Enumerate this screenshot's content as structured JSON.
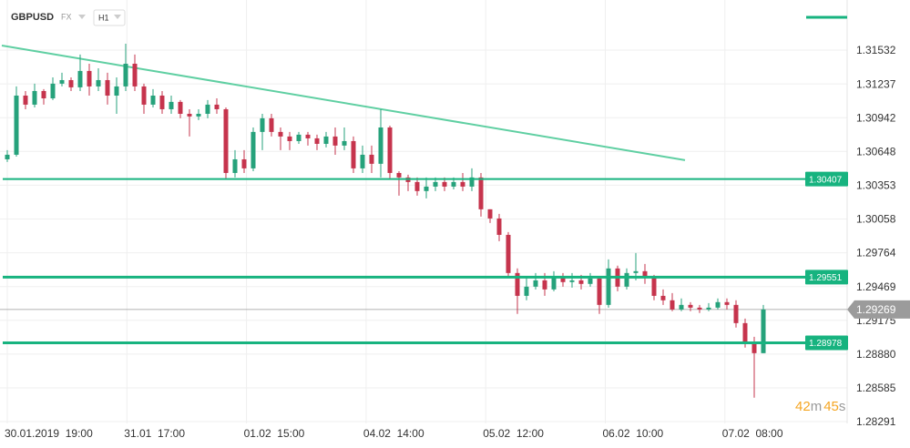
{
  "header": {
    "symbol": "GBPUSD",
    "market": "FX",
    "interval": "H1"
  },
  "timer": {
    "minutes": "42",
    "minutes_unit": "m",
    "seconds": "45",
    "seconds_unit": "s"
  },
  "chart_data": {
    "type": "candlestick",
    "up_color": "#26a27b",
    "down_color": "#c6344d",
    "ylim": [
      1.28275,
      1.31969
    ],
    "yticks": [
      1.31532,
      1.31237,
      1.30942,
      1.30648,
      1.30353,
      1.30058,
      1.29764,
      1.29469,
      1.29175,
      {
        "value": 1.2888,
        "label": "1.28880"
      },
      1.28585,
      1.28291
    ],
    "grid": true,
    "x_labels": [
      "30.01.2019  19:00",
      "31.01  17:00",
      "01.02  15:00",
      "04.02  14:00",
      "05.02  12:00",
      "06.02  10:00",
      "07.02  08:00"
    ],
    "ohlc": [
      [
        1.30579,
        1.30659,
        1.30556,
        1.30619
      ],
      [
        1.30619,
        1.31215,
        1.30603,
        1.31135
      ],
      [
        1.31135,
        1.31175,
        1.31016,
        1.31056
      ],
      [
        1.31056,
        1.31239,
        1.31032,
        1.31175
      ],
      [
        1.31175,
        1.31191,
        1.31056,
        1.31111
      ],
      [
        1.31111,
        1.31294,
        1.31096,
        1.31239
      ],
      [
        1.31239,
        1.31334,
        1.31215,
        1.3127
      ],
      [
        1.3127,
        1.31294,
        1.31175,
        1.31207
      ],
      [
        1.31207,
        1.31493,
        1.31175,
        1.3135
      ],
      [
        1.3135,
        1.31413,
        1.31135,
        1.31215
      ],
      [
        1.31215,
        1.31373,
        1.31175,
        1.3127
      ],
      [
        1.3127,
        1.31334,
        1.31056,
        1.31135
      ],
      [
        1.31135,
        1.31294,
        1.30976,
        1.31215
      ],
      [
        1.31215,
        1.31588,
        1.31175,
        1.31413
      ],
      [
        1.31413,
        1.31493,
        1.31175,
        1.31215
      ],
      [
        1.31215,
        1.31239,
        1.30976,
        1.31056
      ],
      [
        1.31056,
        1.31191,
        1.31032,
        1.31135
      ],
      [
        1.31135,
        1.31175,
        1.30976,
        1.31016
      ],
      [
        1.31016,
        1.31135,
        1.30976,
        1.3108
      ],
      [
        1.3108,
        1.31096,
        1.30937,
        1.30976
      ],
      [
        1.30976,
        1.31016,
        1.30778,
        1.30953
      ],
      [
        1.30953,
        1.31016,
        1.30921,
        1.30976
      ],
      [
        1.30976,
        1.31096,
        1.30937,
        1.31056
      ],
      [
        1.31056,
        1.31111,
        1.30976,
        1.31016
      ],
      [
        1.31016,
        1.31032,
        1.30413,
        1.3046
      ],
      [
        1.3046,
        1.30659,
        1.30421,
        1.30579
      ],
      [
        1.30579,
        1.30659,
        1.3046,
        1.305
      ],
      [
        1.305,
        1.30857,
        1.30476,
        1.30818
      ],
      [
        1.30818,
        1.30976,
        1.30659,
        1.30937
      ],
      [
        1.30937,
        1.30976,
        1.30778,
        1.30818
      ],
      [
        1.30818,
        1.30857,
        1.30659,
        1.30778
      ],
      [
        1.30778,
        1.30818,
        1.30659,
        1.30738
      ],
      [
        1.30738,
        1.30818,
        1.30714,
        1.30794
      ],
      [
        1.30794,
        1.30818,
        1.30699,
        1.30762
      ],
      [
        1.30762,
        1.30794,
        1.30659,
        1.30714
      ],
      [
        1.30714,
        1.30818,
        1.30683,
        1.30778
      ],
      [
        1.30778,
        1.30857,
        1.30619,
        1.30699
      ],
      [
        1.30699,
        1.30857,
        1.30659,
        1.30738
      ],
      [
        1.30738,
        1.30778,
        1.3046,
        1.305
      ],
      [
        1.305,
        1.30699,
        1.3046,
        1.30619
      ],
      [
        1.30619,
        1.30699,
        1.3046,
        1.3054
      ],
      [
        1.3054,
        1.31016,
        1.30421,
        1.30857
      ],
      [
        1.30857,
        1.30873,
        1.30413,
        1.3046
      ],
      [
        1.3046,
        1.30476,
        1.30262,
        1.30421
      ],
      [
        1.30421,
        1.30445,
        1.30302,
        1.30381
      ],
      [
        1.30381,
        1.30421,
        1.30262,
        1.30302
      ],
      [
        1.30302,
        1.30421,
        1.30238,
        1.30341
      ],
      [
        1.30341,
        1.30421,
        1.30302,
        1.30381
      ],
      [
        1.30381,
        1.30421,
        1.30302,
        1.30341
      ],
      [
        1.30341,
        1.30421,
        1.30317,
        1.30381
      ],
      [
        1.30381,
        1.3046,
        1.30302,
        1.30341
      ],
      [
        1.30341,
        1.305,
        1.30302,
        1.30421
      ],
      [
        1.30421,
        1.3046,
        1.30079,
        1.30143
      ],
      [
        1.30143,
        1.30143,
        1.30024,
        1.30063
      ],
      [
        1.30063,
        1.30103,
        1.29865,
        1.2992
      ],
      [
        1.2992,
        1.29944,
        1.29547,
        1.29587
      ],
      [
        1.29587,
        1.29627,
        1.2923,
        1.29388
      ],
      [
        1.29388,
        1.29547,
        1.29349,
        1.29468
      ],
      [
        1.29468,
        1.29587,
        1.29444,
        1.29523
      ],
      [
        1.29523,
        1.29587,
        1.29388,
        1.29444
      ],
      [
        1.29444,
        1.29603,
        1.29428,
        1.29547
      ],
      [
        1.29547,
        1.29587,
        1.29468,
        1.29508
      ],
      [
        1.29508,
        1.29587,
        1.2946,
        1.29523
      ],
      [
        1.29523,
        1.29571,
        1.29444,
        1.29492
      ],
      [
        1.29492,
        1.29587,
        1.29468,
        1.29539
      ],
      [
        1.29539,
        1.29547,
        1.2923,
        1.29309
      ],
      [
        1.29309,
        1.29706,
        1.29285,
        1.29627
      ],
      [
        1.29627,
        1.29651,
        1.29428,
        1.29468
      ],
      [
        1.29468,
        1.29627,
        1.29444,
        1.29587
      ],
      [
        1.29587,
        1.29762,
        1.29523,
        1.29603
      ],
      [
        1.29603,
        1.29666,
        1.29492,
        1.29547
      ],
      [
        1.29547,
        1.29571,
        1.29349,
        1.29388
      ],
      [
        1.29388,
        1.29444,
        1.29309,
        1.29349
      ],
      [
        1.29349,
        1.29412,
        1.29254,
        1.29269
      ],
      [
        1.29269,
        1.29365,
        1.29254,
        1.29309
      ],
      [
        1.29309,
        1.29333,
        1.29254,
        1.29285
      ],
      [
        1.29285,
        1.29309,
        1.29238,
        1.29269
      ],
      [
        1.29269,
        1.29325,
        1.29254,
        1.29285
      ],
      [
        1.29285,
        1.29365,
        1.29269,
        1.29333
      ],
      [
        1.29333,
        1.29365,
        1.29269,
        1.29309
      ],
      [
        1.29309,
        1.29349,
        1.29111,
        1.2915
      ],
      [
        1.2915,
        1.2919,
        1.28936,
        1.28968
      ],
      [
        1.28968,
        1.29031,
        1.28499,
        1.28888
      ],
      [
        1.28888,
        1.29309,
        1.28888,
        1.29269
      ]
    ],
    "levels": [
      1.30407,
      1.29551,
      1.28978
    ],
    "level_color": "#17b37f",
    "trendline": {
      "values": [
        1.31572,
        1.30572
      ],
      "color": "#5fcfa2"
    },
    "last_price": {
      "value": 1.29269,
      "label": "1.29269"
    }
  }
}
